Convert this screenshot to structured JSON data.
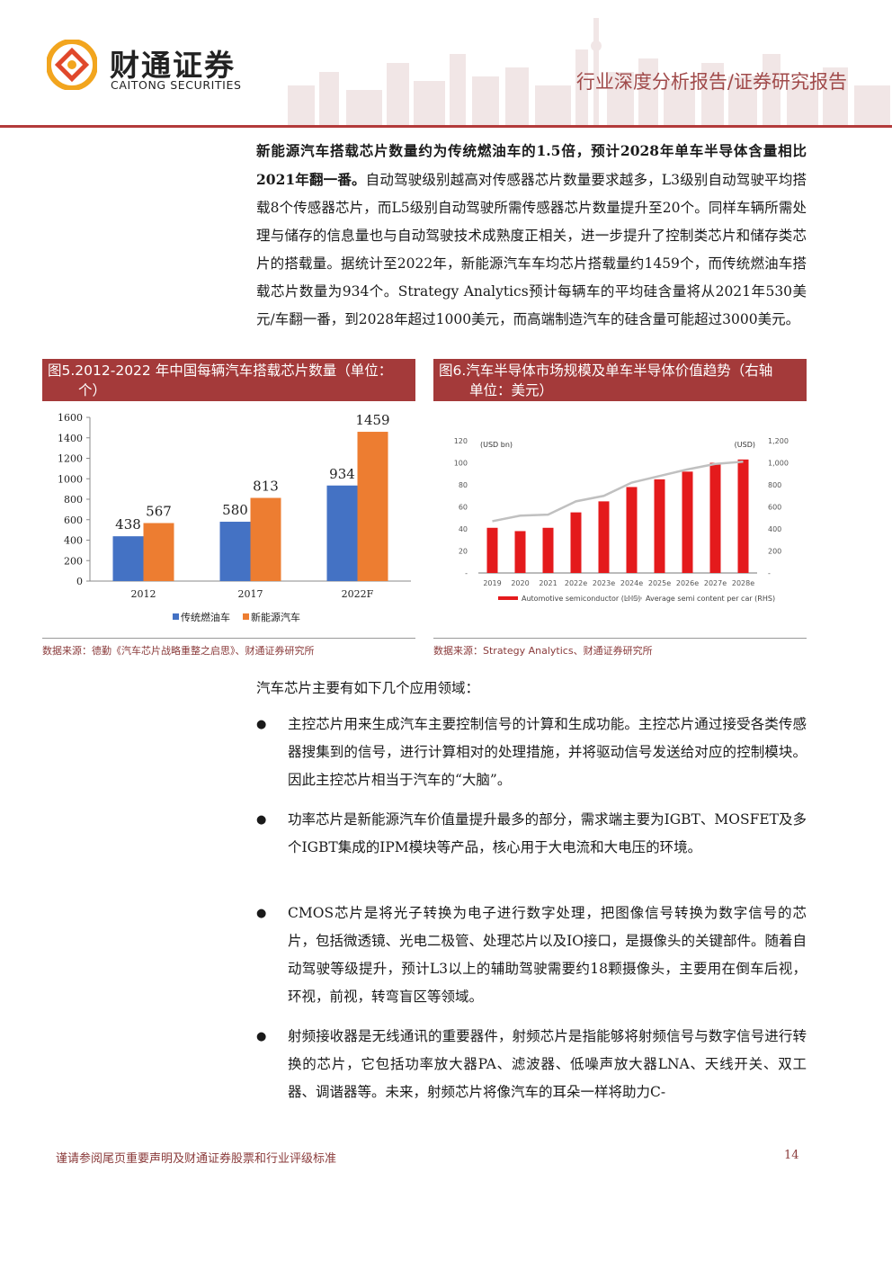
{
  "header": {
    "brand_cn": "财通证券",
    "brand_en": "CAITONG SECURITIES",
    "report_type": "行业深度分析报告/证券研究报告",
    "accent_color": "#b33b3b"
  },
  "intro": {
    "bold": "新能源汽车搭载芯片数量约为传统燃油车的1.5倍，预计2028年单车半导体含量相比2021年翻一番。",
    "text": "自动驾驶级别越高对传感器芯片数量要求越多，L3级别自动驾驶平均搭载8个传感器芯片，而L5级别自动驾驶所需传感器芯片数量提升至20个。同样车辆所需处理与储存的信息量也与自动驾驶技术成熟度正相关，进一步提升了控制类芯片和储存类芯片的搭载量。据统计至2022年，新能源汽车车均芯片搭载量约1459个，而传统燃油车搭载芯片数量为934个。Strategy Analytics预计每辆车的平均硅含量将从2021年530美元/车翻一番，到2028年超过1000美元，而高端制造汽车的硅含量可能超过3000美元。"
  },
  "figure5": {
    "caption_line1": "图5.2012-2022 年中国每辆汽车搭载芯片数量（单位：",
    "caption_line2": "个）",
    "source": "数据来源：德勤《汽车芯片战略重整之启思》、财通证券研究所"
  },
  "figure6": {
    "caption_line1": "图6.汽车半导体市场规模及单车半导体价值趋势（右轴",
    "caption_line2": "单位：美元）",
    "source": "数据来源：Strategy Analytics、财通证券研究所"
  },
  "chart_data": [
    {
      "type": "bar",
      "categories": [
        "2012",
        "2017",
        "2022F"
      ],
      "series": [
        {
          "name": "传统燃油车",
          "values": [
            438,
            580,
            934
          ],
          "color": "#4472c4"
        },
        {
          "name": "新能源汽车",
          "values": [
            567,
            813,
            1459
          ],
          "color": "#ed7d31"
        }
      ],
      "ylim": [
        0,
        1600
      ],
      "yticks": [
        0,
        200,
        400,
        600,
        800,
        1000,
        1200,
        1400,
        1600
      ],
      "legend": "bottom",
      "grid": false
    },
    {
      "type": "bar+line",
      "categories": [
        "2019",
        "2020",
        "2021",
        "2022e",
        "2023e",
        "2024e",
        "2025e",
        "2026e",
        "2027e",
        "2028e"
      ],
      "series": [
        {
          "name": "Automotive semiconductor (LHS)",
          "type": "bar",
          "axis": "left",
          "values": [
            41,
            38,
            41,
            55,
            65,
            78,
            85,
            92,
            100,
            103
          ],
          "color": "#e41a1c"
        },
        {
          "name": "Average semi content per car (RHS)",
          "type": "line",
          "axis": "right",
          "values": [
            470,
            520,
            530,
            650,
            700,
            820,
            880,
            940,
            990,
            1010
          ],
          "color": "#c0c0c0"
        }
      ],
      "ylabel_left": "(USD bn)",
      "ylabel_right": "(USD)",
      "ylim_left": [
        0,
        120
      ],
      "yticks_left": [
        "-",
        "20",
        "40",
        "60",
        "80",
        "100",
        "120"
      ],
      "ylim_right": [
        0,
        1200
      ],
      "yticks_right": [
        "-",
        "200",
        "400",
        "600",
        "800",
        "1,000",
        "1,200"
      ],
      "legend": "bottom",
      "grid": false
    }
  ],
  "lead": "汽车芯片主要有如下几个应用领域：",
  "bullets": [
    "主控芯片用来生成汽车主要控制信号的计算和生成功能。主控芯片通过接受各类传感器搜集到的信号，进行计算相对的处理措施，并将驱动信号发送给对应的控制模块。因此主控芯片相当于汽车的“大脑”。",
    "功率芯片是新能源汽车价值量提升最多的部分，需求端主要为IGBT、MOSFET及多个IGBT集成的IPM模块等产品，核心用于大电流和大电压的环境。",
    "CMOS芯片是将光子转换为电子进行数字处理，把图像信号转换为数字信号的芯片，包括微透镜、光电二极管、处理芯片以及IO接口，是摄像头的关键部件。随着自动驾驶等级提升，预计L3以上的辅助驾驶需要约18颗摄像头，主要用在倒车后视，环视，前视，转弯盲区等领域。",
    "射频接收器是无线通讯的重要器件，射频芯片是指能够将射频信号与数字信号进行转换的芯片，它包括功率放大器PA、滤波器、低噪声放大器LNA、天线开关、双工器、调谐器等。未来，射频芯片将像汽车的耳朵一样将助力C-"
  ],
  "bullet_symbol": "●",
  "footer": {
    "note": "谨请参阅尾页重要声明及财通证券股票和行业评级标准",
    "page": "14"
  }
}
